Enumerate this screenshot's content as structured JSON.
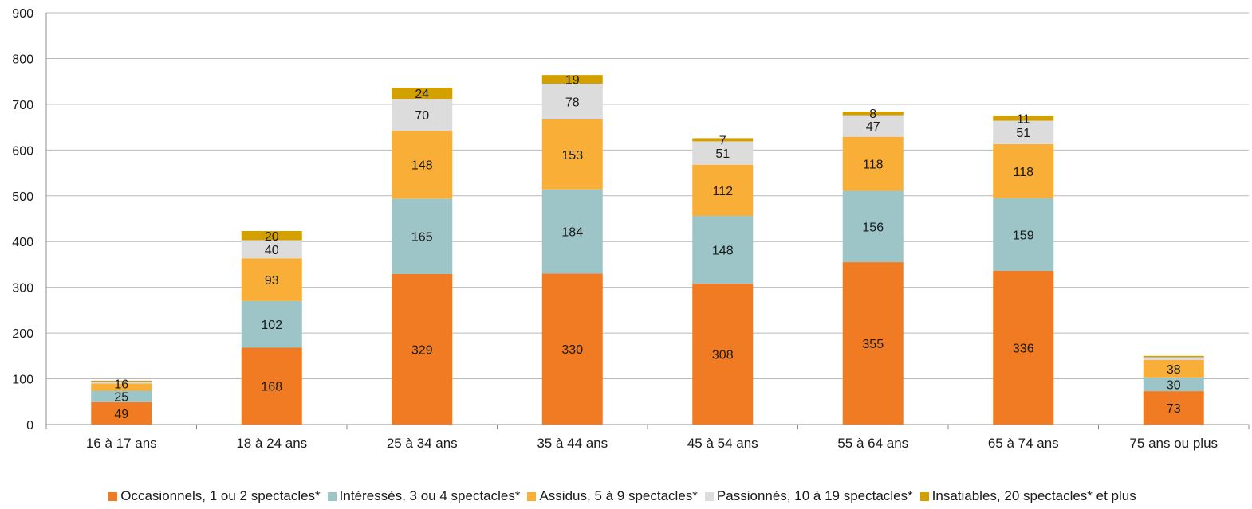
{
  "chart_data": {
    "type": "bar",
    "stacked": true,
    "categories": [
      "16 à 17 ans",
      "18 à 24 ans",
      "25 à 34 ans",
      "35 à 44 ans",
      "45 à 54 ans",
      "55 à 64 ans",
      "65 à 74 ans",
      "75 ans ou plus"
    ],
    "series": [
      {
        "name": "Occasionnels, 1 ou 2 spectacles*",
        "color": "#f07b22",
        "values": [
          49,
          168,
          329,
          330,
          308,
          355,
          336,
          73
        ]
      },
      {
        "name": "Intéressés, 3 ou 4 spectacles*",
        "color": "#9dc4c6",
        "values": [
          25,
          102,
          165,
          184,
          148,
          156,
          159,
          30
        ]
      },
      {
        "name": "Assidus, 5 à 9 spectacles*",
        "color": "#f9ae38",
        "values": [
          16,
          93,
          148,
          153,
          112,
          118,
          118,
          38
        ]
      },
      {
        "name": "Passionnés, 10 à 19 spectacles*",
        "color": "#dcdcdc",
        "values": [
          4,
          40,
          70,
          78,
          51,
          47,
          51,
          6
        ]
      },
      {
        "name": "Insatiables, 20 spectacles* et plus",
        "color": "#d4a000",
        "values": [
          2,
          20,
          24,
          19,
          7,
          8,
          11,
          3
        ]
      }
    ],
    "data_labels": [
      [
        "49",
        "168",
        "329",
        "330",
        "308",
        "355",
        "336",
        "73"
      ],
      [
        "25",
        "102",
        "165",
        "184",
        "148",
        "156",
        "159",
        "30"
      ],
      [
        "16",
        "93",
        "148",
        "153",
        "112",
        "118",
        "118",
        "38"
      ],
      [
        "",
        "40",
        "70",
        "78",
        "51",
        "47",
        "51",
        ""
      ],
      [
        "",
        "20",
        "24",
        "19",
        "7",
        "8",
        "11",
        ""
      ]
    ],
    "yticks": [
      "0",
      "100",
      "200",
      "300",
      "400",
      "500",
      "600",
      "700",
      "800",
      "900"
    ],
    "ylim": [
      0,
      900
    ],
    "grid": true,
    "legend_position": "bottom",
    "title": "",
    "xlabel": "",
    "ylabel": ""
  }
}
